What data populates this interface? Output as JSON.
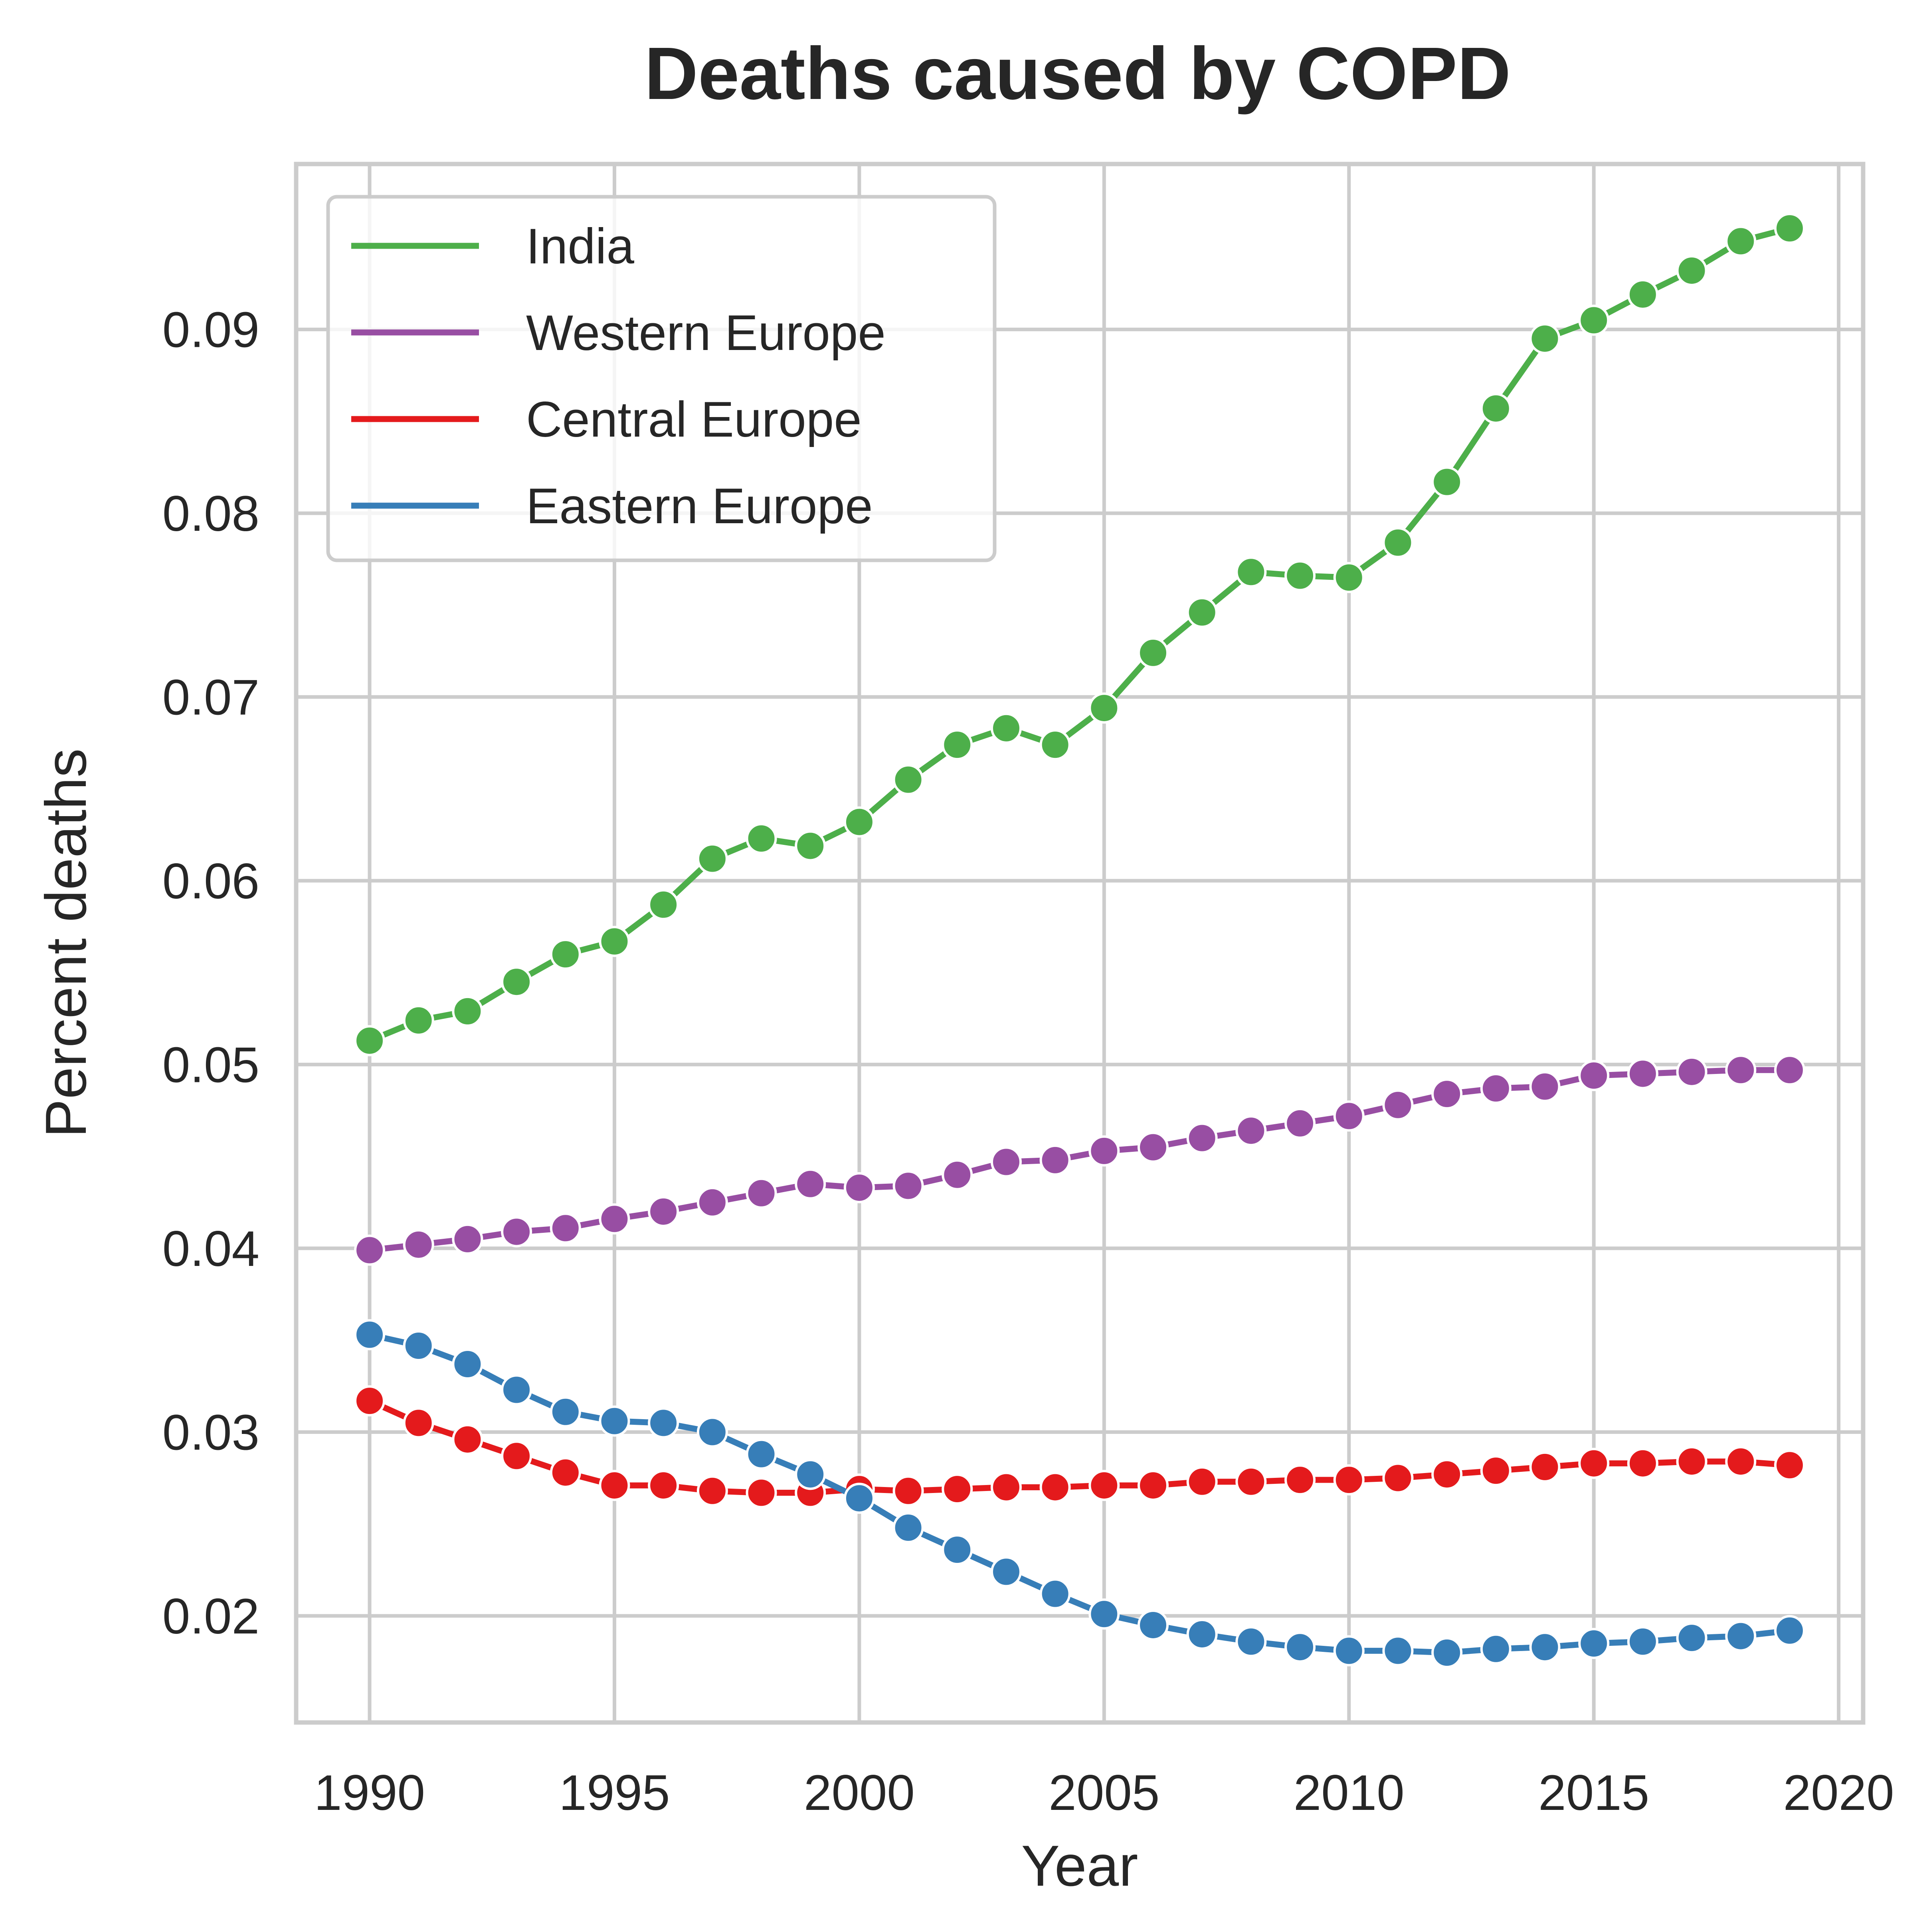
{
  "chart_data": {
    "type": "line",
    "title": "Deaths caused by COPD",
    "xlabel": "Year",
    "ylabel": "Percent deaths",
    "xlim": [
      1988.5,
      2020.5
    ],
    "ylim": [
      0.0142,
      0.099
    ],
    "xticks": [
      1990,
      1995,
      2000,
      2005,
      2010,
      2015,
      2020
    ],
    "yticks": [
      0.02,
      0.03,
      0.04,
      0.05,
      0.06,
      0.07,
      0.08,
      0.09
    ],
    "xtick_labels": [
      "1990",
      "1995",
      "2000",
      "2005",
      "2010",
      "2015",
      "2020"
    ],
    "ytick_labels": [
      "0.02",
      "0.03",
      "0.04",
      "0.05",
      "0.06",
      "0.07",
      "0.08",
      "0.09"
    ],
    "grid": true,
    "legend_position": "top-left",
    "x": [
      1990,
      1991,
      1992,
      1993,
      1994,
      1995,
      1996,
      1997,
      1998,
      1999,
      2000,
      2001,
      2002,
      2003,
      2004,
      2005,
      2006,
      2007,
      2008,
      2009,
      2010,
      2011,
      2012,
      2013,
      2014,
      2015,
      2016,
      2017,
      2018,
      2019
    ],
    "series": [
      {
        "name": "India",
        "color": "#4daf4a",
        "values": [
          0.0513,
          0.0524,
          0.0529,
          0.0545,
          0.056,
          0.0567,
          0.0587,
          0.0612,
          0.0623,
          0.0619,
          0.0632,
          0.0655,
          0.0674,
          0.0683,
          0.0674,
          0.0694,
          0.0724,
          0.0746,
          0.0768,
          0.0766,
          0.0765,
          0.0784,
          0.0817,
          0.0857,
          0.0895,
          0.0905,
          0.0919,
          0.0932,
          0.0948,
          0.0955
        ]
      },
      {
        "name": "Western Europe",
        "color": "#984ea3",
        "values": [
          0.0399,
          0.0402,
          0.0405,
          0.0409,
          0.0411,
          0.0416,
          0.042,
          0.0425,
          0.043,
          0.0435,
          0.0433,
          0.0434,
          0.044,
          0.0447,
          0.0448,
          0.0453,
          0.0455,
          0.046,
          0.0464,
          0.0468,
          0.0472,
          0.0478,
          0.0484,
          0.0487,
          0.0488,
          0.0494,
          0.0495,
          0.0496,
          0.0497,
          0.0497
        ]
      },
      {
        "name": "Central Europe",
        "color": "#e41a1c",
        "values": [
          0.0317,
          0.0305,
          0.0296,
          0.0287,
          0.0278,
          0.0271,
          0.0271,
          0.0268,
          0.0267,
          0.0267,
          0.0269,
          0.0268,
          0.0269,
          0.027,
          0.027,
          0.0271,
          0.0271,
          0.0273,
          0.0273,
          0.0274,
          0.0274,
          0.0275,
          0.0277,
          0.0279,
          0.0281,
          0.0283,
          0.0283,
          0.0284,
          0.0284,
          0.0282
        ]
      },
      {
        "name": "Eastern Europe",
        "color": "#377eb8",
        "values": [
          0.0353,
          0.0347,
          0.0337,
          0.0323,
          0.0311,
          0.0306,
          0.0305,
          0.03,
          0.0288,
          0.0277,
          0.0264,
          0.0248,
          0.0236,
          0.0224,
          0.0212,
          0.0201,
          0.0195,
          0.019,
          0.0186,
          0.0183,
          0.0181,
          0.0181,
          0.018,
          0.0182,
          0.0183,
          0.0185,
          0.0186,
          0.0188,
          0.0189,
          0.0192
        ]
      }
    ]
  }
}
